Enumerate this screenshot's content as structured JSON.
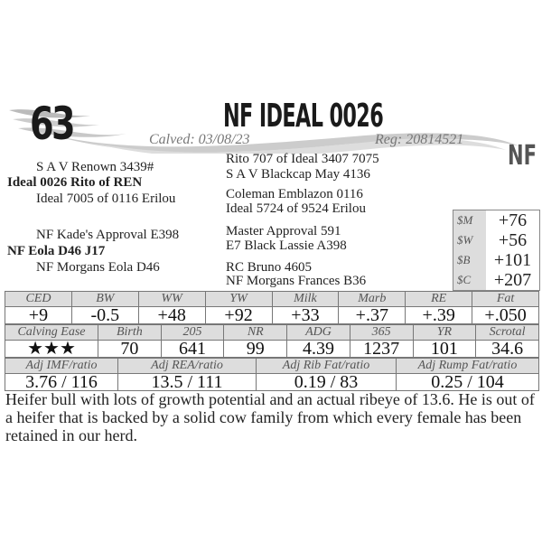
{
  "header": {
    "lot": "63",
    "name": "NF IDEAL 0026",
    "calved": "Calved: 03/08/23",
    "reg": "Reg: 20814521",
    "logo": "NF"
  },
  "pedigree": {
    "left": [
      {
        "text": "S A V Renown 3439#",
        "bold": false
      },
      {
        "text": "Ideal 0026 Rito of REN",
        "bold": true
      },
      {
        "text": "Ideal 7005 of 0116 Erilou",
        "bold": false
      },
      {
        "text": "NF Kade's Approval E398",
        "bold": false
      },
      {
        "text": "NF Eola D46  J17",
        "bold": true
      },
      {
        "text": "NF Morgans Eola D46",
        "bold": false
      }
    ],
    "right": [
      "Rito 707 of Ideal 3407 7075",
      "S A V Blackcap May 4136",
      "Coleman Emblazon 0116",
      "Ideal 5724 of 9524 Erilou",
      "Master Approval 591",
      "E7 Black Lassie A398",
      "RC Bruno 4605",
      "NF Morgans Frances B36"
    ]
  },
  "indexes": [
    {
      "k": "$M",
      "v": "+76"
    },
    {
      "k": "$W",
      "v": "+56"
    },
    {
      "k": "$B",
      "v": "+101"
    },
    {
      "k": "$C",
      "v": "+207"
    }
  ],
  "epds": {
    "headers": [
      "CED",
      "BW",
      "WW",
      "YW",
      "Milk",
      "Marb",
      "RE",
      "Fat"
    ],
    "values": [
      "+9",
      "-0.5",
      "+48",
      "+92",
      "+33",
      "+.37",
      "+.39",
      "+.050"
    ]
  },
  "performance": {
    "headers": [
      "Calving Ease",
      "Birth",
      "205",
      "NR",
      "ADG",
      "365",
      "YR",
      "Scrotal"
    ],
    "values": [
      "★★★",
      "70",
      "641",
      "99",
      "4.39",
      "1237",
      "101",
      "34.6"
    ]
  },
  "ultrasound": {
    "headers": [
      "Adj IMF/ratio",
      "Adj REA/ratio",
      "Adj Rib Fat/ratio",
      "Adj Rump Fat/ratio"
    ],
    "values": [
      "3.76 / 116",
      "13.5 / 111",
      "0.19 / 83",
      "0.25 / 104"
    ]
  },
  "description": "Heifer bull with lots of growth potential and an actual ribeye of 13.6. He is out of a heifer that is backed by a solid cow family from which every female has been retained in our herd."
}
